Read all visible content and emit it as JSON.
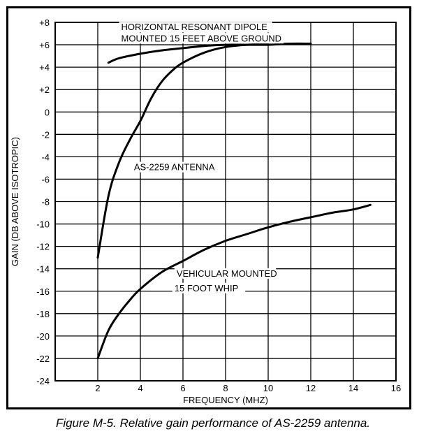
{
  "caption": "Figure M-5. Relative gain performance of AS-2259 antenna.",
  "chart_data": {
    "type": "line",
    "xlabel": "FREQUENCY (MHZ)",
    "ylabel": "GAIN (DB ABOVE ISOTROPIC)",
    "xlim": [
      0,
      16
    ],
    "ylim": [
      -24,
      8
    ],
    "x_ticks": [
      "2",
      "4",
      "6",
      "8",
      "10",
      "12",
      "14",
      "16"
    ],
    "y_ticks": [
      "+8",
      "+6",
      "+4",
      "+2",
      "0",
      "-2",
      "-4",
      "-6",
      "-8",
      "-10",
      "-12",
      "-14",
      "-16",
      "-18",
      "-20",
      "-22",
      "-24"
    ],
    "grid": true,
    "series": [
      {
        "label_lines": [
          "HORIZONTAL RESONANT DIPOLE",
          "MOUNTED 15 FEET ABOVE GROUND"
        ],
        "points": [
          [
            2.5,
            4.4
          ],
          [
            3,
            4.8
          ],
          [
            4,
            5.2
          ],
          [
            5,
            5.5
          ],
          [
            6,
            5.7
          ],
          [
            7,
            5.9
          ],
          [
            8,
            6.0
          ],
          [
            9,
            6.0
          ],
          [
            10,
            6.0
          ],
          [
            11,
            6.1
          ],
          [
            12,
            6.1
          ]
        ]
      },
      {
        "label_lines": [
          "AS-2259 ANTENNA"
        ],
        "points": [
          [
            2,
            -13
          ],
          [
            2.5,
            -7.5
          ],
          [
            3,
            -4.5
          ],
          [
            3.5,
            -2.5
          ],
          [
            4,
            -0.8
          ],
          [
            4.5,
            1.2
          ],
          [
            5,
            2.7
          ],
          [
            5.5,
            3.7
          ],
          [
            6,
            4.4
          ],
          [
            7,
            5.3
          ],
          [
            8,
            5.8
          ],
          [
            9,
            6.0
          ],
          [
            10,
            6.1
          ]
        ]
      },
      {
        "label_lines": [
          "VEHICULAR MOUNTED",
          "15 FOOT WHIP"
        ],
        "points": [
          [
            2,
            -22
          ],
          [
            2.5,
            -19.5
          ],
          [
            3,
            -18.0
          ],
          [
            3.5,
            -16.8
          ],
          [
            4,
            -15.8
          ],
          [
            5,
            -14.3
          ],
          [
            6,
            -13.3
          ],
          [
            7,
            -12.3
          ],
          [
            8,
            -11.5
          ],
          [
            9,
            -10.9
          ],
          [
            10,
            -10.3
          ],
          [
            11,
            -9.8
          ],
          [
            12,
            -9.4
          ],
          [
            13,
            -9.0
          ],
          [
            14,
            -8.7
          ],
          [
            14.8,
            -8.3
          ]
        ]
      }
    ]
  }
}
